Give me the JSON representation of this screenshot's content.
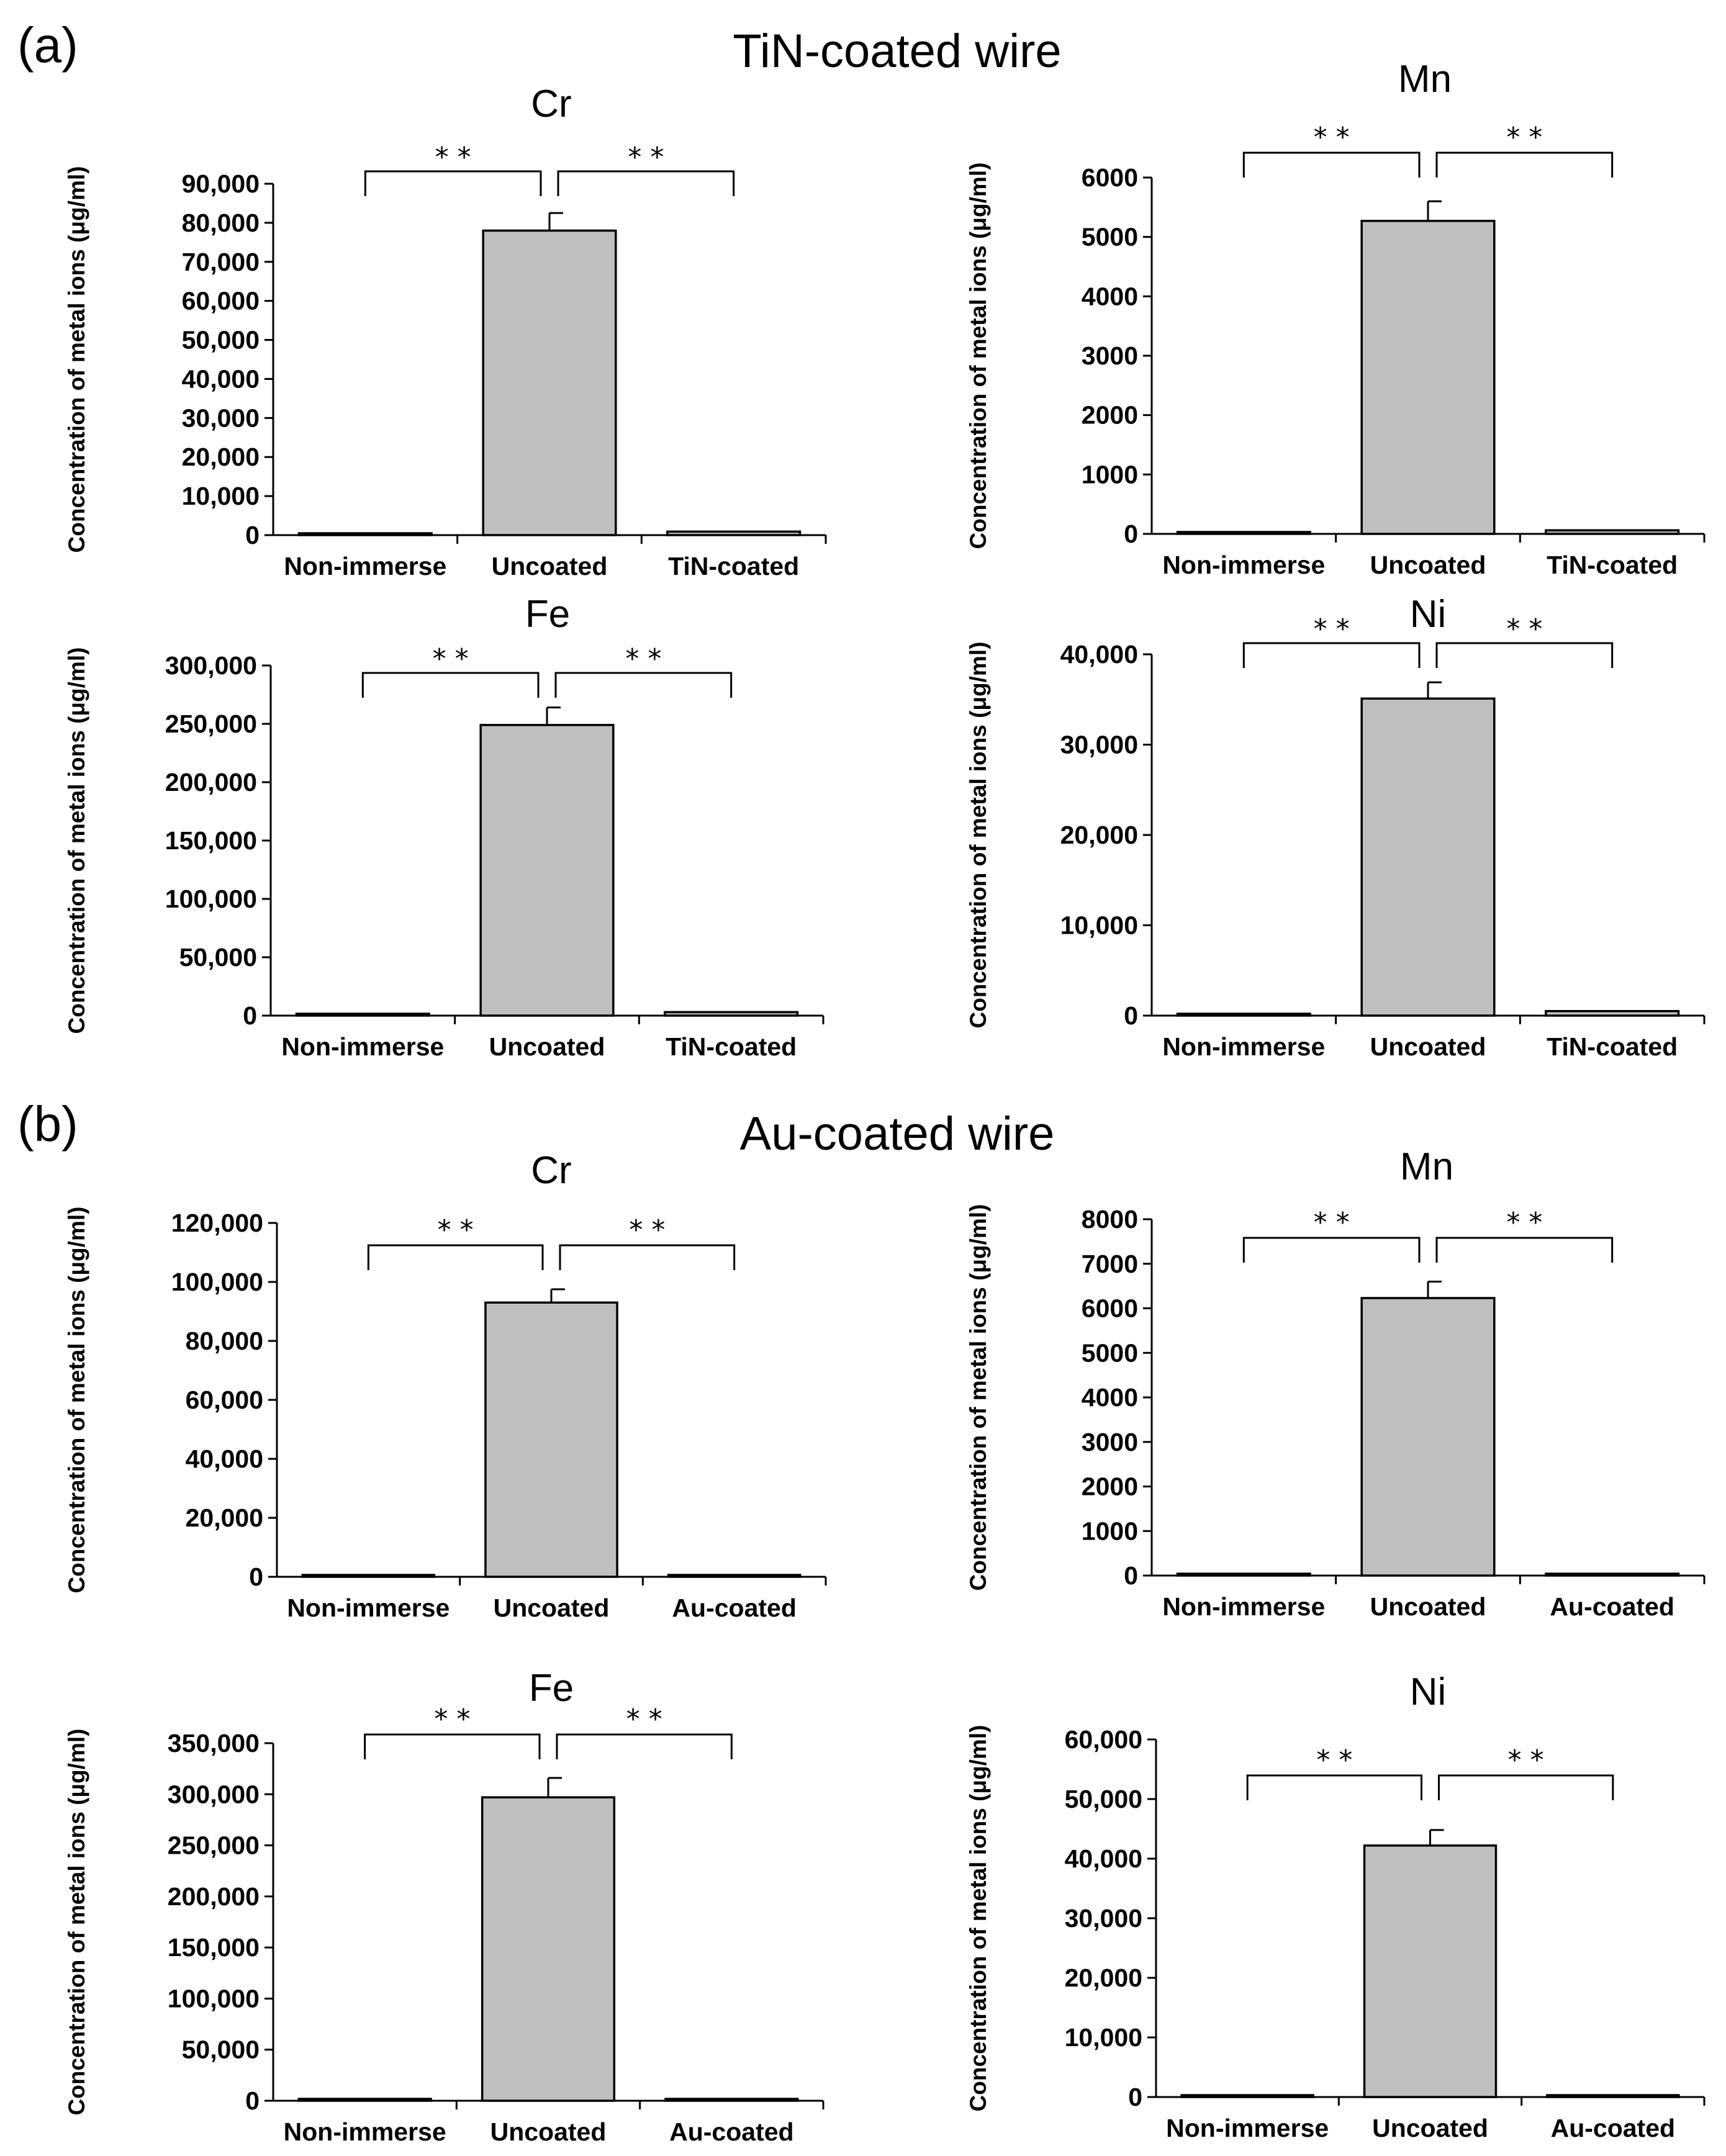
{
  "sections": [
    {
      "letter": "(a)",
      "title": "TiN-coated wire"
    },
    {
      "letter": "(b)",
      "title": "Au-coated wire"
    }
  ],
  "chart_data": [
    {
      "type": "bar",
      "title": "Cr",
      "categories": [
        "Non-immerse",
        "Uncoated",
        "TiN-coated"
      ],
      "values": [
        400,
        78000,
        900
      ],
      "errors": [
        0,
        4500,
        0
      ],
      "ylabel": "Concentration of metal ions (μg/ml)",
      "ylim": [
        0,
        90000
      ],
      "yticks": [
        "0",
        "10,000",
        "20,000",
        "30,000",
        "40,000",
        "50,000",
        "60,000",
        "70,000",
        "80,000",
        "90,000"
      ],
      "significance": [
        "* *",
        "* *"
      ]
    },
    {
      "type": "bar",
      "title": "Mn",
      "categories": [
        "Non-immerse",
        "Uncoated",
        "TiN-coated"
      ],
      "values": [
        20,
        5270,
        60
      ],
      "errors": [
        0,
        330,
        0
      ],
      "ylabel": "Concentration of metal ions (μg/ml)",
      "ylim": [
        0,
        6000
      ],
      "yticks": [
        "0",
        "1000",
        "2000",
        "3000",
        "4000",
        "5000",
        "6000"
      ],
      "significance": [
        "* *",
        "* *"
      ]
    },
    {
      "type": "bar",
      "title": "Fe",
      "categories": [
        "Non-immerse",
        "Uncoated",
        "TiN-coated"
      ],
      "values": [
        500,
        249000,
        3000
      ],
      "errors": [
        0,
        15000,
        0
      ],
      "ylabel": "Concentration of metal ions (μg/ml)",
      "ylim": [
        0,
        300000
      ],
      "yticks": [
        "0",
        "50,000",
        "100,000",
        "150,000",
        "200,000",
        "250,000",
        "300,000"
      ],
      "significance": [
        "* *",
        "* *"
      ]
    },
    {
      "type": "bar",
      "title": "Ni",
      "categories": [
        "Non-immerse",
        "Uncoated",
        "TiN-coated"
      ],
      "values": [
        100,
        35100,
        500
      ],
      "errors": [
        0,
        1800,
        0
      ],
      "ylabel": "Concentration of metal ions (μg/ml)",
      "ylim": [
        0,
        40000
      ],
      "yticks": [
        "0",
        "10,000",
        "20,000",
        "30,000",
        "40,000"
      ],
      "significance": [
        "* *",
        "* *"
      ]
    },
    {
      "type": "bar",
      "title": "Cr",
      "categories": [
        "Non-immerse",
        "Uncoated",
        "Au-coated"
      ],
      "values": [
        200,
        93000,
        200
      ],
      "errors": [
        0,
        4500,
        0
      ],
      "ylabel": "Concentration of metal ions (μg/ml)",
      "ylim": [
        0,
        120000
      ],
      "yticks": [
        "0",
        "20,000",
        "40,000",
        "60,000",
        "80,000",
        "100,000",
        "120,000"
      ],
      "significance": [
        "* *",
        "* *"
      ]
    },
    {
      "type": "bar",
      "title": "Mn",
      "categories": [
        "Non-immerse",
        "Uncoated",
        "Au-coated"
      ],
      "values": [
        15,
        6230,
        15
      ],
      "errors": [
        0,
        370,
        0
      ],
      "ylabel": "Concentration of metal ions (μg/ml)",
      "ylim": [
        0,
        8000
      ],
      "yticks": [
        "0",
        "1000",
        "2000",
        "3000",
        "4000",
        "5000",
        "6000",
        "7000",
        "8000"
      ],
      "significance": [
        "* *",
        "* *"
      ]
    },
    {
      "type": "bar",
      "title": "Fe",
      "categories": [
        "Non-immerse",
        "Uncoated",
        "Au-coated"
      ],
      "values": [
        500,
        297000,
        500
      ],
      "errors": [
        0,
        19000,
        0
      ],
      "ylabel": "Concentration of metal ions (μg/ml)",
      "ylim": [
        0,
        350000
      ],
      "yticks": [
        "0",
        "50,000",
        "100,000",
        "150,000",
        "200,000",
        "250,000",
        "300,000",
        "350,000"
      ],
      "significance": [
        "* *",
        "* *"
      ]
    },
    {
      "type": "bar",
      "title": "Ni",
      "categories": [
        "Non-immerse",
        "Uncoated",
        "Au-coated"
      ],
      "values": [
        100,
        42200,
        100
      ],
      "errors": [
        0,
        2600,
        0
      ],
      "ylabel": "Concentration of metal ions (μg/ml)",
      "ylim": [
        0,
        60000
      ],
      "yticks": [
        "0",
        "10,000",
        "20,000",
        "30,000",
        "40,000",
        "50,000",
        "60,000"
      ],
      "significance": [
        "* *",
        "* *"
      ]
    }
  ]
}
